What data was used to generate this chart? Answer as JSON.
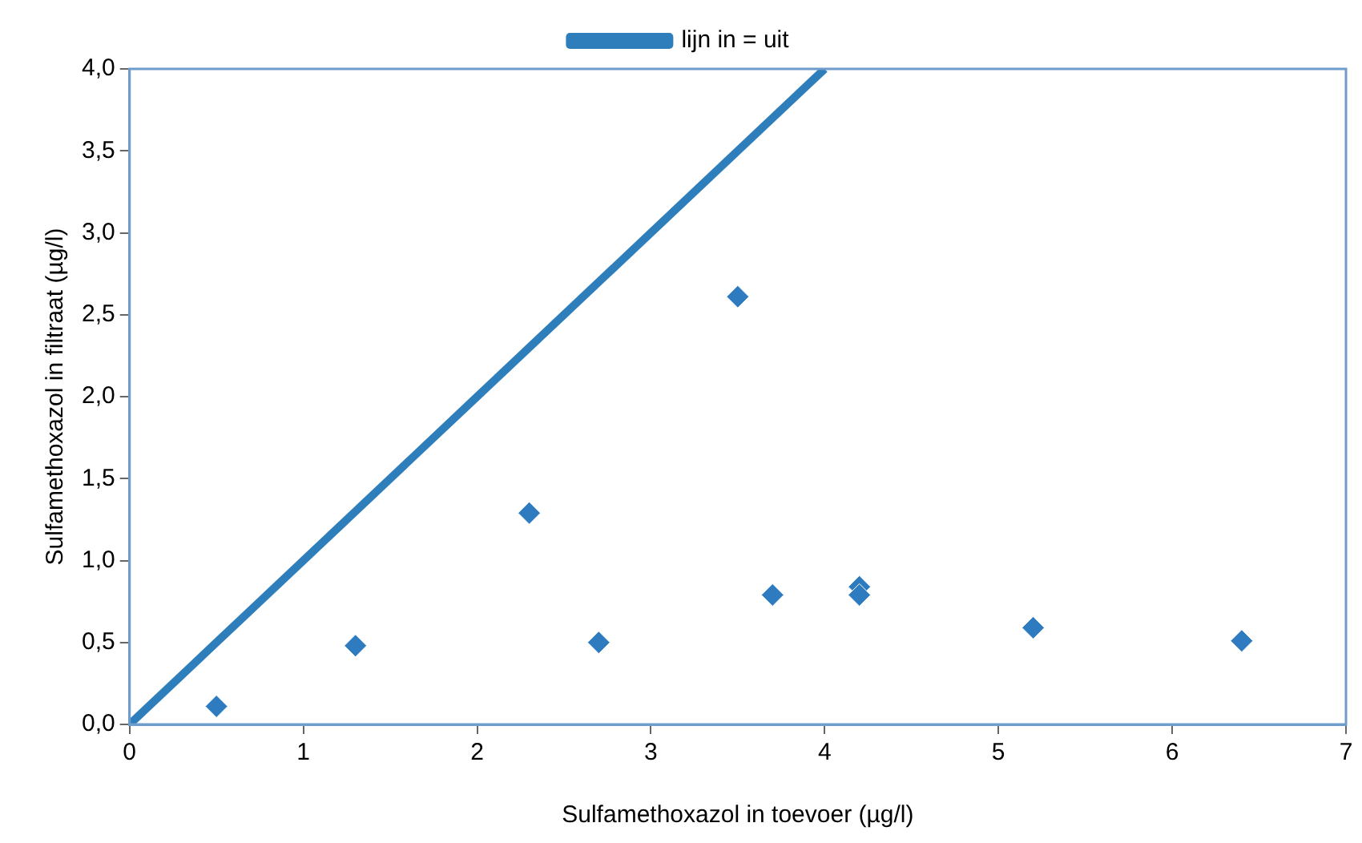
{
  "chart_data": {
    "type": "scatter",
    "xlabel": "Sulfamethoxazol in toevoer (µg/l)",
    "ylabel": "Sulfamethoxazol in filtraat (µg/l)",
    "xlim": [
      0,
      7
    ],
    "xticks": [
      0,
      1,
      2,
      3,
      4,
      5,
      6,
      7
    ],
    "ylim": [
      0,
      4
    ],
    "yticks": [
      {
        "value": 0,
        "label": "0,0"
      },
      {
        "value": 0.5,
        "label": "0,5"
      },
      {
        "value": 1,
        "label": "1,0"
      },
      {
        "value": 1.5,
        "label": "1,5"
      },
      {
        "value": 2,
        "label": "2,0"
      },
      {
        "value": 2.5,
        "label": "2,5"
      },
      {
        "value": 3,
        "label": "3,0"
      },
      {
        "value": 3.5,
        "label": "3,5"
      },
      {
        "value": 4,
        "label": "4,0"
      }
    ],
    "grid": false,
    "legend": "top",
    "marker": "diamond",
    "series": [
      {
        "color": "#2e7bc0",
        "x": [
          0.5,
          1.3,
          2.3,
          2.7,
          3.5,
          3.7,
          4.2,
          4.2,
          5.2,
          6.4
        ],
        "values": [
          0.11,
          0.48,
          1.29,
          0.5,
          2.61,
          0.79,
          0.84,
          0.79,
          0.59,
          0.51
        ]
      },
      {
        "type": "line",
        "name": "lijn in = uit",
        "color": "#2f7ebc",
        "marker": "none",
        "line_style": "solid",
        "x": [
          0,
          4
        ],
        "values": [
          0,
          4
        ]
      }
    ]
  }
}
